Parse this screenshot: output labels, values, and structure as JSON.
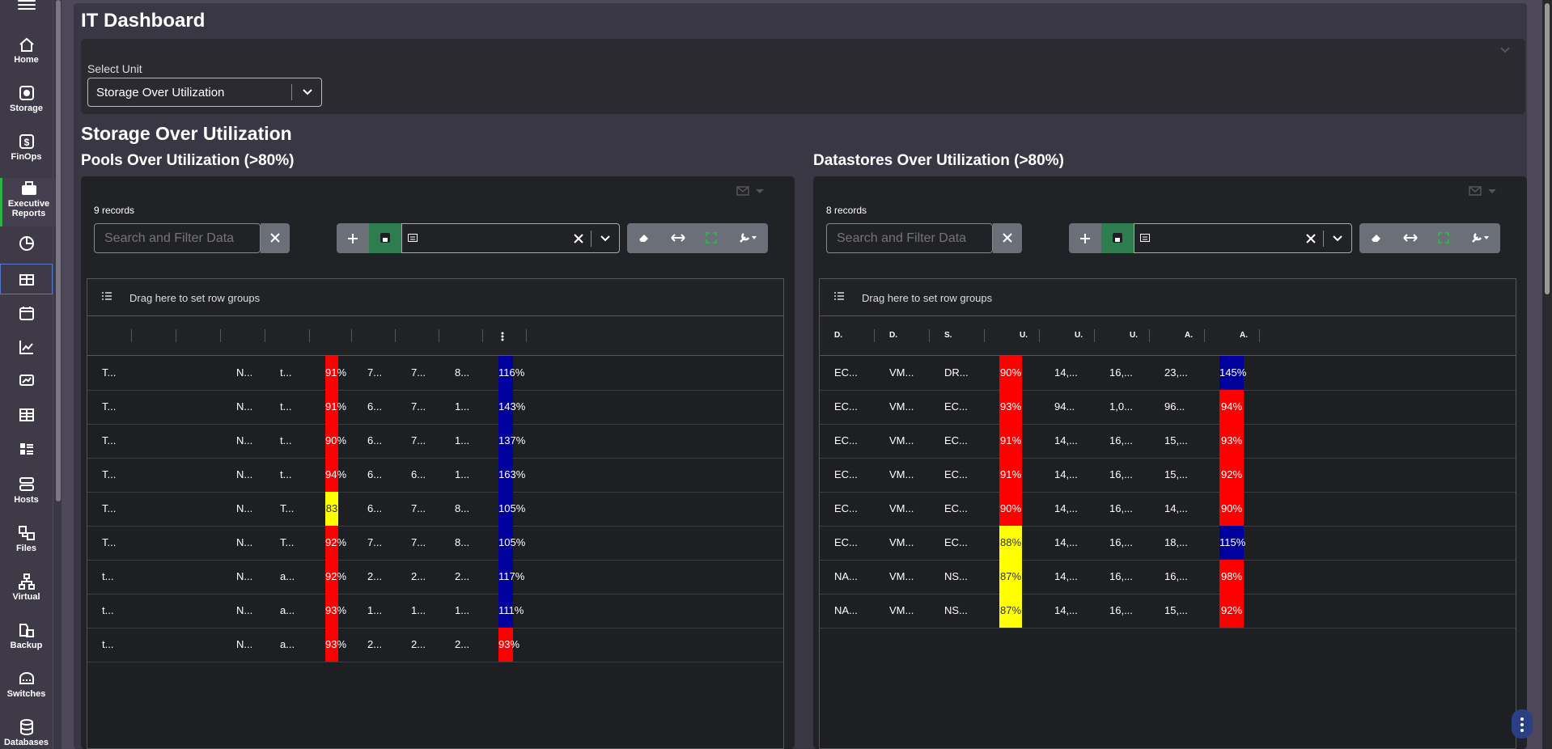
{
  "app_title": "IT Dashboard",
  "sidebar": {
    "items": [
      {
        "label": "Home",
        "icon": "home-icon"
      },
      {
        "label": "Storage",
        "icon": "storage-icon"
      },
      {
        "label": "FinOps",
        "icon": "dollar-icon"
      },
      {
        "label": "Executive Reports",
        "icon": "briefcase-icon"
      },
      {
        "label": "",
        "icon": "pie-chart-icon"
      },
      {
        "label": "",
        "icon": "table-icon"
      },
      {
        "label": "",
        "icon": "calendar-icon"
      },
      {
        "label": "",
        "icon": "line-chart-icon"
      },
      {
        "label": "",
        "icon": "reports-icon"
      },
      {
        "label": "",
        "icon": "grid-icon"
      },
      {
        "label": "",
        "icon": "dashboard-list-icon"
      },
      {
        "label": "Hosts",
        "icon": "server-icon"
      },
      {
        "label": "Files",
        "icon": "files-icon"
      },
      {
        "label": "Virtual",
        "icon": "network-icon"
      },
      {
        "label": "Backup",
        "icon": "backup-icon"
      },
      {
        "label": "Switches",
        "icon": "switch-icon"
      },
      {
        "label": "Databases",
        "icon": "database-icon"
      }
    ]
  },
  "unit_selector": {
    "label": "Select Unit",
    "value": "Storage Over Utilization"
  },
  "section_title": "Storage Over Utilization",
  "pools": {
    "title": "Pools Over Utilization (>80%)",
    "records": "9 records",
    "search_placeholder": "Search and Filter Data",
    "group_hint": "Drag here to set row groups",
    "rows": [
      [
        "T...",
        "",
        "",
        "N...",
        "t...",
        "91%",
        "7...",
        "7...",
        "8...",
        "116%"
      ],
      [
        "T...",
        "",
        "",
        "N...",
        "t...",
        "91%",
        "6...",
        "7...",
        "1...",
        "143%"
      ],
      [
        "T...",
        "",
        "",
        "N...",
        "t...",
        "90%",
        "6...",
        "7...",
        "1...",
        "137%"
      ],
      [
        "T...",
        "",
        "",
        "N...",
        "t...",
        "94%",
        "6...",
        "6...",
        "1...",
        "163%"
      ],
      [
        "T...",
        "",
        "",
        "N...",
        "T...",
        "83",
        "6...",
        "7...",
        "8...",
        "105%"
      ],
      [
        "T...",
        "",
        "",
        "N...",
        "T...",
        "92%",
        "7...",
        "7...",
        "8...",
        "105%"
      ],
      [
        "t...",
        "",
        "",
        "N...",
        "a...",
        "92%",
        "2...",
        "2...",
        "2...",
        "117%"
      ],
      [
        "t...",
        "",
        "",
        "N...",
        "a...",
        "93%",
        "1...",
        "1...",
        "1...",
        "111%"
      ],
      [
        "t...",
        "",
        "",
        "N...",
        "a...",
        "93%",
        "2...",
        "2...",
        "2...",
        "93%"
      ]
    ],
    "util_colors": [
      "#ff0000",
      "#ff0000",
      "#ff0000",
      "#ff0000",
      "#ffff00",
      "#ff0000",
      "#ff0000",
      "#ff0000",
      "#ff0000"
    ],
    "alloc_colors": [
      "#00009c",
      "#00009c",
      "#00009c",
      "#00009c",
      "#00009c",
      "#00009c",
      "#00009c",
      "#00009c",
      "#ff0000"
    ]
  },
  "datastores": {
    "title": "Datastores Over Utilization (>80%)",
    "records": "8 records",
    "search_placeholder": "Search and Filter Data",
    "group_hint": "Drag here to set row groups",
    "headers": [
      "D.",
      "D.",
      "S.",
      "U.",
      "U.",
      "U.",
      "A.",
      "A."
    ],
    "rows": [
      [
        "EC...",
        "VM...",
        "DR...",
        "90%",
        "14,...",
        "16,...",
        "23,...",
        "145%"
      ],
      [
        "EC...",
        "VM...",
        "EC...",
        "93%",
        "94...",
        "1,0...",
        "96...",
        "94%"
      ],
      [
        "EC...",
        "VM...",
        "EC...",
        "91%",
        "14,...",
        "16,...",
        "15,...",
        "93%"
      ],
      [
        "EC...",
        "VM...",
        "EC...",
        "91%",
        "14,...",
        "16,...",
        "15,...",
        "92%"
      ],
      [
        "EC...",
        "VM...",
        "EC...",
        "90%",
        "14,...",
        "16,...",
        "14,...",
        "90%"
      ],
      [
        "EC...",
        "VM...",
        "EC...",
        "88%",
        "14,...",
        "16,...",
        "18,...",
        "115%"
      ],
      [
        "NA...",
        "VM...",
        "NS...",
        "87%",
        "14,...",
        "16,...",
        "16,...",
        "98%"
      ],
      [
        "NA...",
        "VM...",
        "NS...",
        "87%",
        "14,...",
        "16,...",
        "15,...",
        "92%"
      ]
    ],
    "util_colors": [
      "#ff0000",
      "#ff0000",
      "#ff0000",
      "#ff0000",
      "#ff0000",
      "#ffff00",
      "#ffff00",
      "#ffff00"
    ],
    "alloc_colors": [
      "#00009c",
      "#ff0000",
      "#ff0000",
      "#ff0000",
      "#ff0000",
      "#00009c",
      "#ff0000",
      "#ff0000"
    ]
  },
  "colors": {
    "accent_green": "#2fb344",
    "save_green": "#2e7d4f",
    "over_red": "#ff0000",
    "warn_yellow": "#ffff00",
    "alloc_blue": "#00009c"
  }
}
